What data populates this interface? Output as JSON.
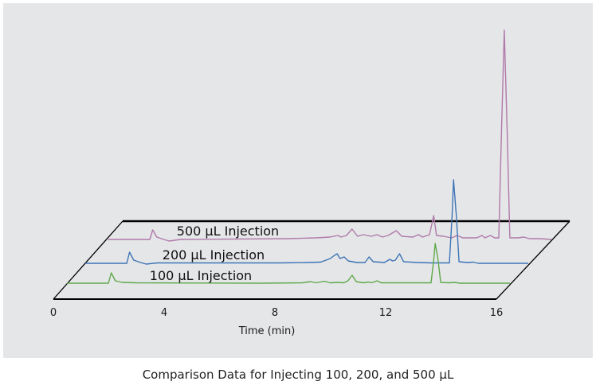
{
  "caption": "Comparison Data for Injecting 100, 200, and 500 µL",
  "chart_data": {
    "type": "line",
    "style": "3d-stacked-chromatogram",
    "title": "",
    "xlabel": "Time (min)",
    "ylabel": "",
    "xlim": [
      0,
      16
    ],
    "xticks": [
      0,
      4,
      8,
      12,
      16
    ],
    "xtick_labels": [
      "0",
      "4",
      "8",
      "12",
      "16"
    ],
    "grid": false,
    "series": [
      {
        "name": "100 µL Injection",
        "color": "#5fa94a",
        "points": [
          [
            0,
            0
          ],
          [
            1.5,
            0
          ],
          [
            1.6,
            13
          ],
          [
            1.75,
            3
          ],
          [
            2.0,
            1
          ],
          [
            2.5,
            0.5
          ],
          [
            7.0,
            0
          ],
          [
            8.5,
            0.5
          ],
          [
            8.8,
            2
          ],
          [
            9.0,
            0.5
          ],
          [
            9.3,
            2.5
          ],
          [
            9.5,
            0.5
          ],
          [
            9.8,
            1
          ],
          [
            10.0,
            0.5
          ],
          [
            10.15,
            3
          ],
          [
            10.3,
            10
          ],
          [
            10.45,
            2
          ],
          [
            10.7,
            0.5
          ],
          [
            10.9,
            1.5
          ],
          [
            11.0,
            0.5
          ],
          [
            11.2,
            3
          ],
          [
            11.35,
            0.5
          ],
          [
            12.5,
            0.5
          ],
          [
            13.15,
            0.5
          ],
          [
            13.25,
            30
          ],
          [
            13.3,
            50
          ],
          [
            13.4,
            30
          ],
          [
            13.5,
            1
          ],
          [
            13.8,
            0.5
          ],
          [
            14.0,
            1
          ],
          [
            14.2,
            0
          ],
          [
            16,
            0
          ]
        ]
      },
      {
        "name": "200 µL Injection",
        "color": "#3d74b6",
        "points": [
          [
            0,
            0
          ],
          [
            1.5,
            0
          ],
          [
            1.6,
            14
          ],
          [
            1.75,
            4
          ],
          [
            2.0,
            1
          ],
          [
            2.2,
            -1
          ],
          [
            2.6,
            0.5
          ],
          [
            7.0,
            0.5
          ],
          [
            8.0,
            1
          ],
          [
            8.5,
            1.5
          ],
          [
            8.7,
            4
          ],
          [
            8.85,
            6
          ],
          [
            9.0,
            10
          ],
          [
            9.1,
            12
          ],
          [
            9.2,
            6
          ],
          [
            9.35,
            8
          ],
          [
            9.5,
            3
          ],
          [
            9.8,
            1
          ],
          [
            10.1,
            1
          ],
          [
            10.25,
            8
          ],
          [
            10.4,
            2
          ],
          [
            10.8,
            1
          ],
          [
            11.0,
            5
          ],
          [
            11.1,
            3
          ],
          [
            11.2,
            4
          ],
          [
            11.35,
            12
          ],
          [
            11.5,
            2
          ],
          [
            12.0,
            1
          ],
          [
            12.5,
            0.5
          ],
          [
            13.15,
            0.5
          ],
          [
            13.25,
            60
          ],
          [
            13.3,
            105
          ],
          [
            13.4,
            60
          ],
          [
            13.5,
            2
          ],
          [
            13.8,
            1
          ],
          [
            14.0,
            1.5
          ],
          [
            14.2,
            0
          ],
          [
            16,
            0
          ]
        ]
      },
      {
        "name": "500 µL Injection",
        "color": "#b07aaa",
        "points": [
          [
            0,
            0
          ],
          [
            1.5,
            0
          ],
          [
            1.6,
            12
          ],
          [
            1.75,
            3
          ],
          [
            2.0,
            0
          ],
          [
            2.2,
            -2
          ],
          [
            2.6,
            0
          ],
          [
            6.5,
            1
          ],
          [
            7.5,
            2
          ],
          [
            8.0,
            3
          ],
          [
            8.3,
            5
          ],
          [
            8.4,
            3
          ],
          [
            8.6,
            5
          ],
          [
            8.8,
            13
          ],
          [
            9.0,
            4
          ],
          [
            9.2,
            6
          ],
          [
            9.5,
            4
          ],
          [
            9.7,
            6
          ],
          [
            9.9,
            3
          ],
          [
            10.1,
            5
          ],
          [
            10.4,
            11
          ],
          [
            10.6,
            4
          ],
          [
            11.0,
            3
          ],
          [
            11.2,
            6
          ],
          [
            11.35,
            3
          ],
          [
            11.6,
            6
          ],
          [
            11.75,
            30
          ],
          [
            11.85,
            5
          ],
          [
            12.1,
            4
          ],
          [
            12.4,
            2
          ],
          [
            12.6,
            5
          ],
          [
            12.8,
            2
          ],
          [
            13.3,
            2
          ],
          [
            13.5,
            5
          ],
          [
            13.6,
            2
          ],
          [
            13.8,
            5
          ],
          [
            13.95,
            2
          ],
          [
            14.1,
            2
          ],
          [
            14.2,
            140
          ],
          [
            14.3,
            263
          ],
          [
            14.4,
            140
          ],
          [
            14.5,
            2
          ],
          [
            14.8,
            2
          ],
          [
            15.0,
            3
          ],
          [
            15.2,
            1
          ],
          [
            15.6,
            1
          ],
          [
            16,
            0
          ]
        ]
      }
    ],
    "series_labels": [
      "500 µL Injection",
      "200 µL Injection",
      "100 µL Injection"
    ]
  }
}
